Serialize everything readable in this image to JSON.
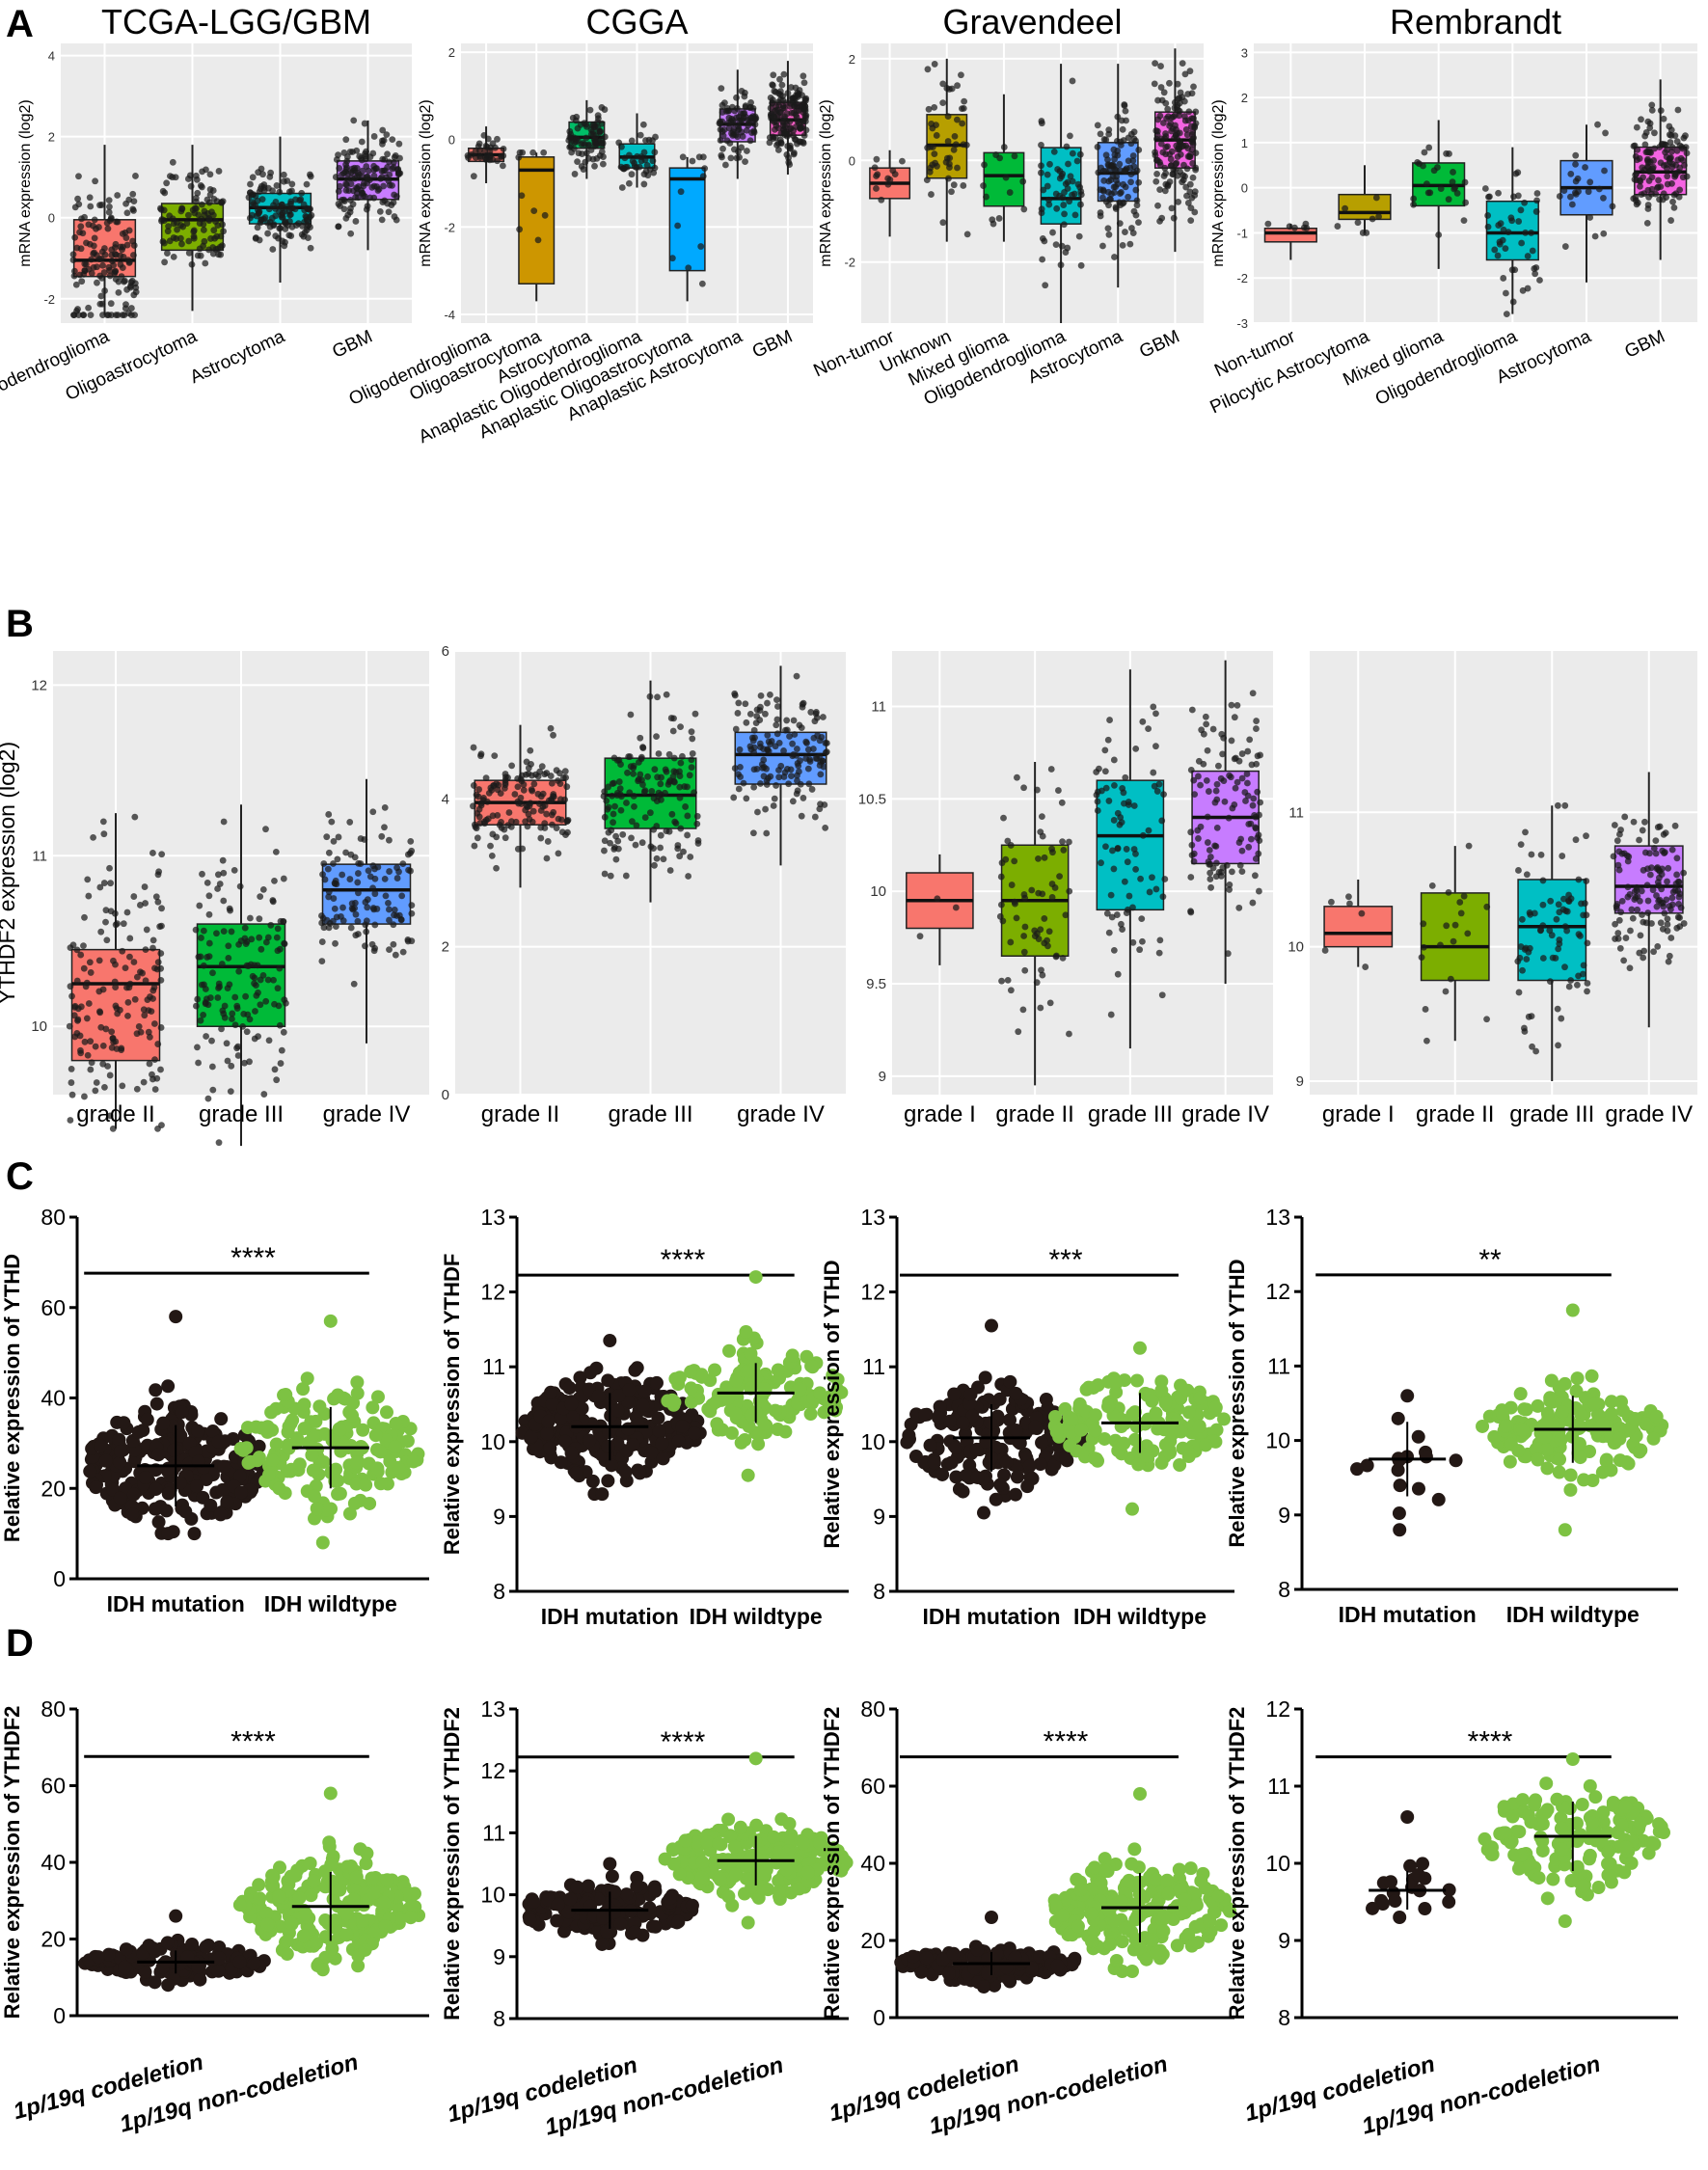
{
  "panel_letters": [
    "A",
    "B",
    "C",
    "D"
  ],
  "colors": {
    "dot": "#1a1a1a",
    "ggplot_bg": "#ebebeb",
    "grid": "#ffffff",
    "mutation_dots": "#231815",
    "wildtype_dots": "#7dc243",
    "box_fills": [
      "#f8766d",
      "#cd9600",
      "#00be67",
      "#00bfc4",
      "#00a9ff",
      "#7cae00",
      "#c77cff",
      "#e76bf3",
      "#619cff"
    ]
  },
  "chart_data": [
    {
      "panel": "A",
      "type": "box",
      "title": "TCGA-LGG/GBM",
      "xlabel": "",
      "ylabel": "mRNA expression (log2)",
      "ylim": [
        -2.6,
        4.3
      ],
      "yticks": [
        -2,
        0,
        2,
        4
      ],
      "categories": [
        "Oligodendroglioma",
        "Oligoastrocytoma",
        "Astrocytoma",
        "GBM"
      ],
      "box_colors": [
        "#f8766d",
        "#7cae00",
        "#00bfc4",
        "#c77cff"
      ],
      "boxes": [
        {
          "q1": -1.45,
          "median": -1.05,
          "q3": -0.05,
          "wlo": -2.4,
          "whi": 1.8,
          "n": 150
        },
        {
          "q1": -0.8,
          "median": -0.05,
          "q3": 0.35,
          "wlo": -2.3,
          "whi": 1.8,
          "n": 110
        },
        {
          "q1": -0.15,
          "median": 0.25,
          "q3": 0.6,
          "wlo": -1.6,
          "whi": 2.0,
          "n": 130
        },
        {
          "q1": 0.45,
          "median": 0.95,
          "q3": 1.4,
          "wlo": -0.8,
          "whi": 2.4,
          "n": 150
        }
      ]
    },
    {
      "panel": "A",
      "type": "box",
      "title": "CGGA",
      "xlabel": "",
      "ylabel": "mRNA expression (log2)",
      "ylim": [
        -4.2,
        2.2
      ],
      "yticks": [
        -4,
        -2,
        0,
        2
      ],
      "categories": [
        "Oligodendroglioma",
        "Oligoastrocytoma",
        "Astrocytoma",
        "Anaplastic Oligodendroglioma",
        "Anaplastic Oligoastrocytoma",
        "Anaplastic Astrocytoma",
        "GBM"
      ],
      "box_colors": [
        "#f8766d",
        "#cd9600",
        "#00be67",
        "#00bfc4",
        "#00a9ff",
        "#c77cff",
        "#ff61cc"
      ],
      "boxes": [
        {
          "q1": -0.5,
          "median": -0.35,
          "q3": -0.2,
          "wlo": -1.0,
          "whi": 0.3,
          "n": 35
        },
        {
          "q1": -3.3,
          "median": -0.7,
          "q3": -0.4,
          "wlo": -3.7,
          "whi": -0.3,
          "n": 10
        },
        {
          "q1": -0.2,
          "median": 0.05,
          "q3": 0.4,
          "wlo": -0.9,
          "whi": 0.9,
          "n": 80
        },
        {
          "q1": -0.65,
          "median": -0.4,
          "q3": -0.1,
          "wlo": -1.1,
          "whi": 0.6,
          "n": 40
        },
        {
          "q1": -3.0,
          "median": -0.9,
          "q3": -0.65,
          "wlo": -3.7,
          "whi": -0.4,
          "n": 12
        },
        {
          "q1": -0.05,
          "median": 0.35,
          "q3": 0.7,
          "wlo": -0.9,
          "whi": 1.6,
          "n": 90
        },
        {
          "q1": 0.1,
          "median": 0.45,
          "q3": 0.85,
          "wlo": -0.8,
          "whi": 1.8,
          "n": 160
        }
      ]
    },
    {
      "panel": "A",
      "type": "box",
      "title": "Gravendeel",
      "xlabel": "",
      "ylabel": "mRNA expression (log2)",
      "ylim": [
        -3.2,
        2.3
      ],
      "yticks": [
        -2,
        0,
        2
      ],
      "categories": [
        "Non-tumor",
        "Unknown",
        "Mixed glioma",
        "Oligodendroglioma",
        "Astrocytoma",
        "GBM"
      ],
      "box_colors": [
        "#f8766d",
        "#b79f00",
        "#00ba38",
        "#00bfc4",
        "#619cff",
        "#f564e3"
      ],
      "boxes": [
        {
          "q1": -0.75,
          "median": -0.45,
          "q3": -0.15,
          "wlo": -1.5,
          "whi": 0.2,
          "n": 12
        },
        {
          "q1": -0.35,
          "median": 0.3,
          "q3": 0.9,
          "wlo": -1.6,
          "whi": 2.0,
          "n": 50
        },
        {
          "q1": -0.9,
          "median": -0.3,
          "q3": 0.15,
          "wlo": -1.6,
          "whi": 1.3,
          "n": 14
        },
        {
          "q1": -1.25,
          "median": -0.75,
          "q3": 0.25,
          "wlo": -3.2,
          "whi": 1.9,
          "n": 60
        },
        {
          "q1": -0.8,
          "median": -0.25,
          "q3": 0.35,
          "wlo": -2.5,
          "whi": 1.9,
          "n": 110
        },
        {
          "q1": -0.15,
          "median": 0.4,
          "q3": 0.95,
          "wlo": -1.8,
          "whi": 2.2,
          "n": 160
        }
      ]
    },
    {
      "panel": "A",
      "type": "box",
      "title": "Rembrandt",
      "xlabel": "",
      "ylabel": "mRNA expression (log2)",
      "ylim": [
        -3.0,
        3.2
      ],
      "yticks": [
        -3,
        -2,
        -1,
        0,
        1,
        2,
        3
      ],
      "categories": [
        "Non-tumor",
        "Pilocytic Astrocytoma",
        "Mixed glioma",
        "Oligodendroglioma",
        "Astrocytoma",
        "GBM"
      ],
      "box_colors": [
        "#f8766d",
        "#b79f00",
        "#00ba38",
        "#00bfc4",
        "#619cff",
        "#f564e3"
      ],
      "boxes": [
        {
          "q1": -1.2,
          "median": -1.0,
          "q3": -0.9,
          "wlo": -1.6,
          "whi": -0.8,
          "n": 6
        },
        {
          "q1": -0.7,
          "median": -0.55,
          "q3": -0.15,
          "wlo": -1.0,
          "whi": 0.5,
          "n": 8
        },
        {
          "q1": -0.4,
          "median": 0.05,
          "q3": 0.55,
          "wlo": -1.8,
          "whi": 1.5,
          "n": 25
        },
        {
          "q1": -1.6,
          "median": -1.0,
          "q3": -0.3,
          "wlo": -2.8,
          "whi": 0.9,
          "n": 45
        },
        {
          "q1": -0.6,
          "median": 0.0,
          "q3": 0.6,
          "wlo": -2.1,
          "whi": 1.4,
          "n": 25
        },
        {
          "q1": -0.15,
          "median": 0.35,
          "q3": 0.9,
          "wlo": -1.6,
          "whi": 2.4,
          "n": 130
        }
      ]
    },
    {
      "panel": "B",
      "type": "box",
      "title": "",
      "xlabel": "",
      "ylabel": "YTHDF2 expression (log2)",
      "ylim": [
        9.6,
        12.2
      ],
      "yticks": [
        10,
        11,
        12
      ],
      "categories": [
        "grade II",
        "grade III",
        "grade IV"
      ],
      "box_colors": [
        "#f8766d",
        "#00ba38",
        "#619cff"
      ],
      "boxes": [
        {
          "q1": 9.8,
          "median": 10.25,
          "q3": 10.45,
          "wlo": 9.4,
          "whi": 11.25,
          "n": 160
        },
        {
          "q1": 10.0,
          "median": 10.35,
          "q3": 10.6,
          "wlo": 9.3,
          "whi": 11.3,
          "n": 150
        },
        {
          "q1": 10.6,
          "median": 10.8,
          "q3": 10.95,
          "wlo": 9.9,
          "whi": 11.45,
          "n": 120
        }
      ]
    },
    {
      "panel": "B",
      "type": "box",
      "title": "",
      "xlabel": "",
      "ylabel": "",
      "ylim": [
        0,
        6
      ],
      "yticks": [
        0,
        2,
        4,
        6
      ],
      "categories": [
        "grade II",
        "grade III",
        "grade IV"
      ],
      "box_colors": [
        "#f8766d",
        "#00ba38",
        "#619cff"
      ],
      "boxes": [
        {
          "q1": 3.65,
          "median": 3.95,
          "q3": 4.25,
          "wlo": 2.8,
          "whi": 5.0,
          "n": 150
        },
        {
          "q1": 3.6,
          "median": 4.05,
          "q3": 4.55,
          "wlo": 2.6,
          "whi": 5.6,
          "n": 150
        },
        {
          "q1": 4.2,
          "median": 4.6,
          "q3": 4.9,
          "wlo": 3.1,
          "whi": 5.8,
          "n": 150
        }
      ]
    },
    {
      "panel": "B",
      "type": "box",
      "title": "",
      "xlabel": "",
      "ylabel": "",
      "ylim": [
        8.9,
        11.3
      ],
      "yticks": [
        9.0,
        9.5,
        10.0,
        10.5,
        11.0
      ],
      "categories": [
        "grade I",
        "grade II",
        "grade III",
        "grade IV"
      ],
      "box_colors": [
        "#f8766d",
        "#7cae00",
        "#00bfc4",
        "#c77cff"
      ],
      "boxes": [
        {
          "q1": 9.8,
          "median": 9.95,
          "q3": 10.1,
          "wlo": 9.6,
          "whi": 10.2,
          "n": 3
        },
        {
          "q1": 9.65,
          "median": 9.95,
          "q3": 10.25,
          "wlo": 8.95,
          "whi": 10.7,
          "n": 70
        },
        {
          "q1": 9.9,
          "median": 10.3,
          "q3": 10.6,
          "wlo": 9.15,
          "whi": 11.2,
          "n": 80
        },
        {
          "q1": 10.15,
          "median": 10.4,
          "q3": 10.65,
          "wlo": 9.5,
          "whi": 11.25,
          "n": 120
        }
      ]
    },
    {
      "panel": "B",
      "type": "box",
      "title": "",
      "xlabel": "",
      "ylabel": "",
      "ylim": [
        8.9,
        12.2
      ],
      "yticks": [
        9,
        10,
        11
      ],
      "categories": [
        "grade I",
        "grade II",
        "grade III",
        "grade IV"
      ],
      "box_colors": [
        "#f8766d",
        "#7cae00",
        "#00bfc4",
        "#c77cff"
      ],
      "boxes": [
        {
          "q1": 10.0,
          "median": 10.1,
          "q3": 10.3,
          "wlo": 9.85,
          "whi": 10.5,
          "n": 6
        },
        {
          "q1": 9.75,
          "median": 10.0,
          "q3": 10.4,
          "wlo": 9.3,
          "whi": 10.75,
          "n": 20
        },
        {
          "q1": 9.75,
          "median": 10.15,
          "q3": 10.5,
          "wlo": 9.0,
          "whi": 11.05,
          "n": 80
        },
        {
          "q1": 10.25,
          "median": 10.45,
          "q3": 10.75,
          "wlo": 9.4,
          "whi": 11.3,
          "n": 130
        }
      ]
    },
    {
      "panel": "C",
      "type": "scatter_dot",
      "ylabel": "Relative expression of YTHD",
      "ylim": [
        0,
        80
      ],
      "yticks": [
        0,
        20,
        40,
        60,
        80
      ],
      "categories": [
        "IDH mutation",
        "IDH wildtype"
      ],
      "italic_labels": false,
      "significance": "****",
      "groups": [
        {
          "mean": 25,
          "sd": 9,
          "lo": 10,
          "hi": 58,
          "n": 260
        },
        {
          "mean": 29,
          "sd": 9,
          "lo": 8,
          "hi": 57,
          "n": 170
        }
      ]
    },
    {
      "panel": "C",
      "type": "scatter_dot",
      "ylabel": "Relative expression of YTHDF",
      "ylim": [
        8,
        13
      ],
      "yticks": [
        8,
        9,
        10,
        11,
        12,
        13
      ],
      "categories": [
        "IDH mutation",
        "IDH wildtype"
      ],
      "italic_labels": false,
      "significance": "****",
      "groups": [
        {
          "mean": 10.2,
          "sd": 0.45,
          "lo": 9.3,
          "hi": 11.35,
          "n": 260
        },
        {
          "mean": 10.65,
          "sd": 0.4,
          "lo": 9.55,
          "hi": 12.2,
          "n": 150
        }
      ]
    },
    {
      "panel": "C",
      "type": "scatter_dot",
      "ylabel": "Relative expression of YTHD",
      "ylim": [
        8,
        13
      ],
      "yticks": [
        8,
        9,
        10,
        11,
        12,
        13
      ],
      "categories": [
        "IDH mutation",
        "IDH wildtype"
      ],
      "italic_labels": false,
      "significance": "***",
      "groups": [
        {
          "mean": 10.05,
          "sd": 0.45,
          "lo": 9.05,
          "hi": 11.55,
          "n": 190
        },
        {
          "mean": 10.25,
          "sd": 0.4,
          "lo": 9.1,
          "hi": 11.25,
          "n": 150
        }
      ]
    },
    {
      "panel": "C",
      "type": "scatter_dot",
      "ylabel": "Relative expression of YTHD",
      "ylim": [
        8,
        13
      ],
      "yticks": [
        8,
        9,
        10,
        11,
        12,
        13
      ],
      "categories": [
        "IDH mutation",
        "IDH wildtype"
      ],
      "italic_labels": false,
      "significance": "**",
      "groups": [
        {
          "mean": 9.75,
          "sd": 0.5,
          "lo": 8.8,
          "hi": 10.6,
          "n": 15
        },
        {
          "mean": 10.15,
          "sd": 0.45,
          "lo": 8.8,
          "hi": 11.75,
          "n": 170
        }
      ]
    },
    {
      "panel": "D",
      "type": "scatter_dot",
      "ylabel": "Relative expression of YTHDF2",
      "ylim": [
        0,
        80
      ],
      "yticks": [
        0,
        20,
        40,
        60,
        80
      ],
      "categories": [
        "1p/19q codeletion",
        "1p/19q non-codeletion"
      ],
      "italic_labels": true,
      "significance": "****",
      "groups": [
        {
          "mean": 14,
          "sd": 3,
          "lo": 8,
          "hi": 26,
          "n": 150
        },
        {
          "mean": 28.5,
          "sd": 9,
          "lo": 12,
          "hi": 58,
          "n": 230
        }
      ]
    },
    {
      "panel": "D",
      "type": "scatter_dot",
      "ylabel": "Relative expression of YTHDF2",
      "ylim": [
        8,
        13
      ],
      "yticks": [
        8,
        9,
        10,
        11,
        12,
        13
      ],
      "categories": [
        "1p/19q codeletion",
        "1p/19q non-codeletion"
      ],
      "italic_labels": true,
      "significance": "****",
      "groups": [
        {
          "mean": 9.75,
          "sd": 0.3,
          "lo": 9.2,
          "hi": 10.5,
          "n": 150
        },
        {
          "mean": 10.55,
          "sd": 0.4,
          "lo": 9.55,
          "hi": 12.2,
          "n": 230
        }
      ]
    },
    {
      "panel": "D",
      "type": "scatter_dot",
      "ylabel": "Relative expression of YTHDF2",
      "ylim": [
        0,
        80
      ],
      "yticks": [
        0,
        20,
        40,
        60,
        80
      ],
      "categories": [
        "1p/19q codeletion",
        "1p/19q non-codeletion"
      ],
      "italic_labels": true,
      "significance": "****",
      "groups": [
        {
          "mean": 14,
          "sd": 3,
          "lo": 8,
          "hi": 26,
          "n": 150
        },
        {
          "mean": 28.5,
          "sd": 9,
          "lo": 12,
          "hi": 58,
          "n": 230
        }
      ]
    },
    {
      "panel": "D",
      "type": "scatter_dot",
      "ylabel": "Relative expression of YTHDF2",
      "ylim": [
        8,
        12
      ],
      "yticks": [
        8,
        9,
        10,
        11,
        12
      ],
      "categories": [
        "1p/19q codeletion",
        "1p/19q non-codeletion"
      ],
      "italic_labels": true,
      "significance": "****",
      "groups": [
        {
          "mean": 9.65,
          "sd": 0.25,
          "lo": 9.3,
          "hi": 10.6,
          "n": 18
        },
        {
          "mean": 10.35,
          "sd": 0.45,
          "lo": 9.25,
          "hi": 11.35,
          "n": 160
        }
      ]
    }
  ]
}
